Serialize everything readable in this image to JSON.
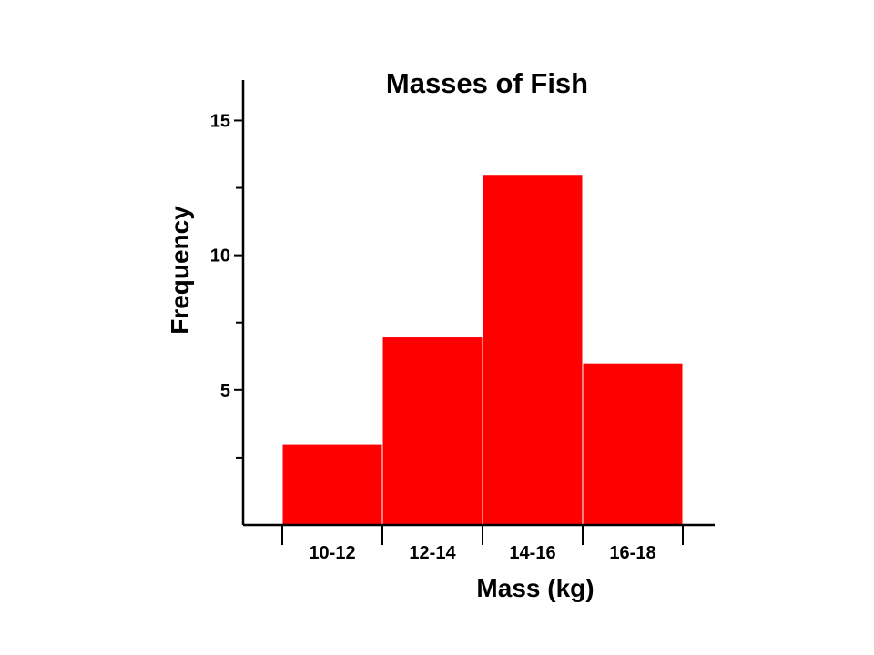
{
  "chart_data": {
    "type": "bar",
    "title": "Masses of Fish",
    "xlabel": "Mass (kg)",
    "ylabel": "Frequency",
    "categories": [
      "10-12",
      "12-14",
      "14-16",
      "16-18"
    ],
    "values": [
      3,
      7,
      13,
      6
    ],
    "ylim": [
      0,
      16.5
    ],
    "y_tick_labels": [
      {
        "value": 5,
        "label": "5"
      },
      {
        "value": 10,
        "label": "10"
      },
      {
        "value": 15,
        "label": "15"
      }
    ],
    "y_minor_ticks": [
      2.5,
      7.5,
      12.5
    ],
    "bar_color": "#ff0000",
    "grid": false,
    "legend": "none"
  }
}
